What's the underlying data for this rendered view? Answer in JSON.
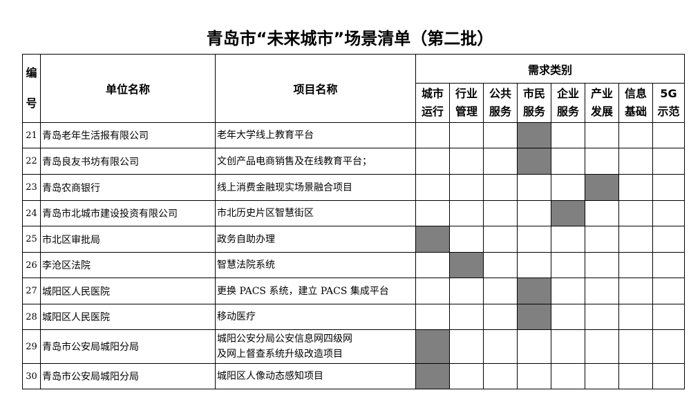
{
  "title": "青岛市“未来城市”场景清单（第二批）",
  "headers": {
    "number": "编号",
    "unit": "单位名称",
    "project": "项目名称",
    "category_group": "需求类别",
    "categories": [
      "城市运行",
      "行业管理",
      "公共服务",
      "市民服务",
      "企业服务",
      "产业发展",
      "信息基础",
      "5G示范"
    ]
  },
  "mark_color": "#808080",
  "rows": [
    {
      "no": "21",
      "unit": "青岛老年生活报有限公司",
      "project": "老年大学线上教育平台",
      "category": "市民服务"
    },
    {
      "no": "22",
      "unit": "青岛良友书坊有限公司",
      "project": "文创产品电商销售及在线教育平台；",
      "category": "市民服务"
    },
    {
      "no": "23",
      "unit": "青岛农商银行",
      "project": "线上消费金融现实场景融合项目",
      "category": "产业发展"
    },
    {
      "no": "24",
      "unit": "青岛市北城市建设投资有限公司",
      "project": "市北历史片区智慧街区",
      "category": "企业服务"
    },
    {
      "no": "25",
      "unit": "市北区审批局",
      "project": "政务自助办理",
      "category": "城市运行"
    },
    {
      "no": "26",
      "unit": "李沧区法院",
      "project": "智慧法院系统",
      "category": "行业管理"
    },
    {
      "no": "27",
      "unit": "城阳区人民医院",
      "project": "更换 PACS 系统，建立 PACS 集成平台",
      "category": "市民服务"
    },
    {
      "no": "28",
      "unit": "城阳区人民医院",
      "project": "移动医疗",
      "category": "市民服务"
    },
    {
      "no": "29",
      "unit": "青岛市公安局城阳分局",
      "project": "城阳公安分局公安信息网四级网\n及网上督查系统升级改造项目",
      "category": "城市运行"
    },
    {
      "no": "30",
      "unit": "青岛市公安局城阳分局",
      "project": "城阳区人像动态感知项目",
      "category": "城市运行"
    }
  ]
}
